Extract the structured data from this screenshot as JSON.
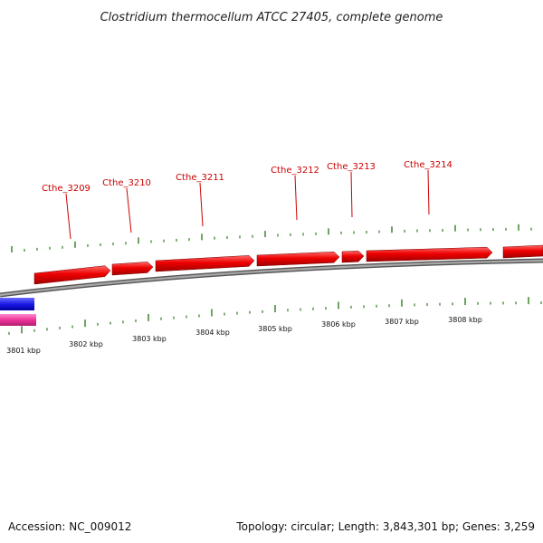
{
  "title": "Clostridium thermocellum ATCC 27405, complete genome",
  "footer": {
    "accession": "Accession: NC_009012",
    "topology": "Topology: circular; Length: 3,843,301 bp; Genes: 3,259"
  },
  "colors": {
    "gene": "#ee0000",
    "gene_label": "#cc0000",
    "tick": "#2e7d1e",
    "backbone": "#888888",
    "track_blue": "#1a1ae6",
    "track_pink": "#ee3399"
  },
  "gene_labels": [
    {
      "name": "Cthe_3209"
    },
    {
      "name": "Cthe_3210"
    },
    {
      "name": "Cthe_3211"
    },
    {
      "name": "Cthe_3212"
    },
    {
      "name": "Cthe_3213"
    },
    {
      "name": "Cthe_3214"
    }
  ],
  "scale_labels": [
    {
      "text": "3801 kbp"
    },
    {
      "text": "3802 kbp"
    },
    {
      "text": "3803 kbp"
    },
    {
      "text": "3804 kbp"
    },
    {
      "text": "3805 kbp"
    },
    {
      "text": "3806 kbp"
    },
    {
      "text": "3807 kbp"
    },
    {
      "text": "3808 kbp"
    }
  ]
}
